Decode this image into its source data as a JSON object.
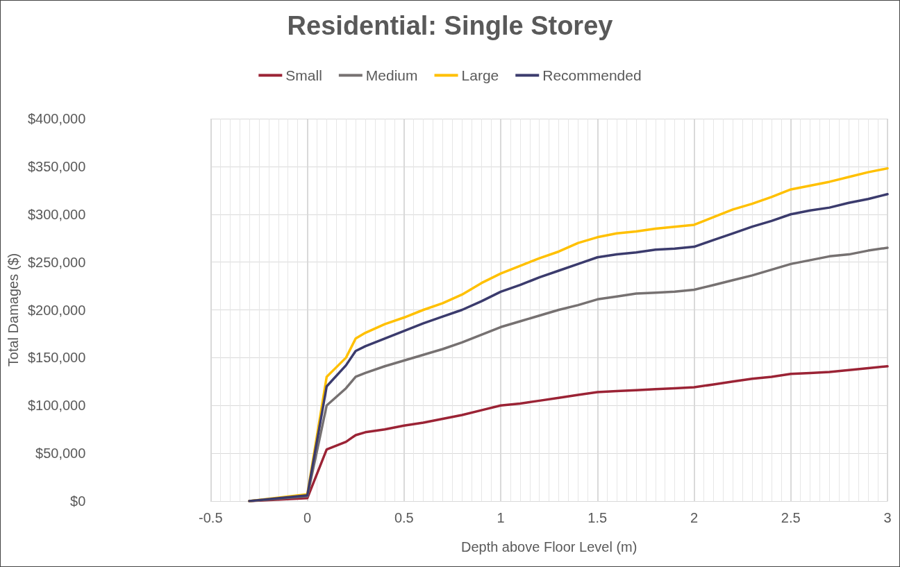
{
  "chart_data": {
    "type": "line",
    "title": "Residential: Single Storey",
    "xlabel": "Depth above Floor Level (m)",
    "ylabel": "Total Damages ($)",
    "x": [
      -0.3,
      0,
      0.1,
      0.2,
      0.25,
      0.3,
      0.4,
      0.5,
      0.6,
      0.7,
      0.8,
      0.9,
      1.0,
      1.1,
      1.2,
      1.3,
      1.4,
      1.5,
      1.6,
      1.7,
      1.8,
      1.9,
      2.0,
      2.1,
      2.2,
      2.3,
      2.4,
      2.5,
      2.6,
      2.7,
      2.8,
      2.9,
      3.0
    ],
    "series": [
      {
        "name": "Small",
        "color": "#9b2335",
        "values": [
          0,
          3000,
          54000,
          62000,
          69000,
          72000,
          75000,
          79000,
          82000,
          86000,
          90000,
          95000,
          100000,
          102000,
          105000,
          108000,
          111000,
          114000,
          115000,
          116000,
          117000,
          118000,
          119000,
          122000,
          125000,
          128000,
          130000,
          133000,
          134000,
          135000,
          137000,
          139000,
          141000
        ]
      },
      {
        "name": "Medium",
        "color": "#767171",
        "values": [
          0,
          5000,
          100000,
          118000,
          130000,
          134000,
          141000,
          147000,
          153000,
          159000,
          166000,
          174000,
          182000,
          188000,
          194000,
          200000,
          205000,
          211000,
          214000,
          217000,
          218000,
          219000,
          221000,
          226000,
          231000,
          236000,
          242000,
          248000,
          252000,
          256000,
          258000,
          262000,
          265000
        ]
      },
      {
        "name": "Large",
        "color": "#ffc000",
        "values": [
          0,
          7000,
          130000,
          150000,
          170000,
          176000,
          185000,
          192000,
          200000,
          207000,
          216000,
          228000,
          238000,
          246000,
          254000,
          261000,
          270000,
          276000,
          280000,
          282000,
          285000,
          287000,
          289000,
          297000,
          305000,
          311000,
          318000,
          326000,
          330000,
          334000,
          339000,
          344000,
          348000
        ]
      },
      {
        "name": "Recommended",
        "color": "#3b3b6d",
        "values": [
          0,
          6000,
          120000,
          142000,
          157000,
          162000,
          170000,
          178000,
          186000,
          193000,
          200000,
          209000,
          219000,
          226000,
          234000,
          241000,
          248000,
          255000,
          258000,
          260000,
          263000,
          264000,
          266000,
          273000,
          280000,
          287000,
          293000,
          300000,
          304000,
          307000,
          312000,
          316000,
          321000
        ]
      }
    ],
    "xlim": [
      -0.5,
      3
    ],
    "xticks": [
      -0.5,
      0,
      0.5,
      1,
      1.5,
      2,
      2.5,
      3
    ],
    "ylim": [
      0,
      400000
    ],
    "yticks": [
      {
        "value": 0,
        "label": "$0"
      },
      {
        "value": 50000,
        "label": "$50,000"
      },
      {
        "value": 100000,
        "label": "$100,000"
      },
      {
        "value": 150000,
        "label": "$150,000"
      },
      {
        "value": 200000,
        "label": "$200,000"
      },
      {
        "value": 250000,
        "label": "$250,000"
      },
      {
        "value": 300000,
        "label": "$300,000"
      },
      {
        "value": 350000,
        "label": "$350,000"
      },
      {
        "value": 400000,
        "label": "$400,000"
      }
    ],
    "grid": true,
    "legend": "top",
    "marker": "none",
    "line_style": "solid"
  }
}
